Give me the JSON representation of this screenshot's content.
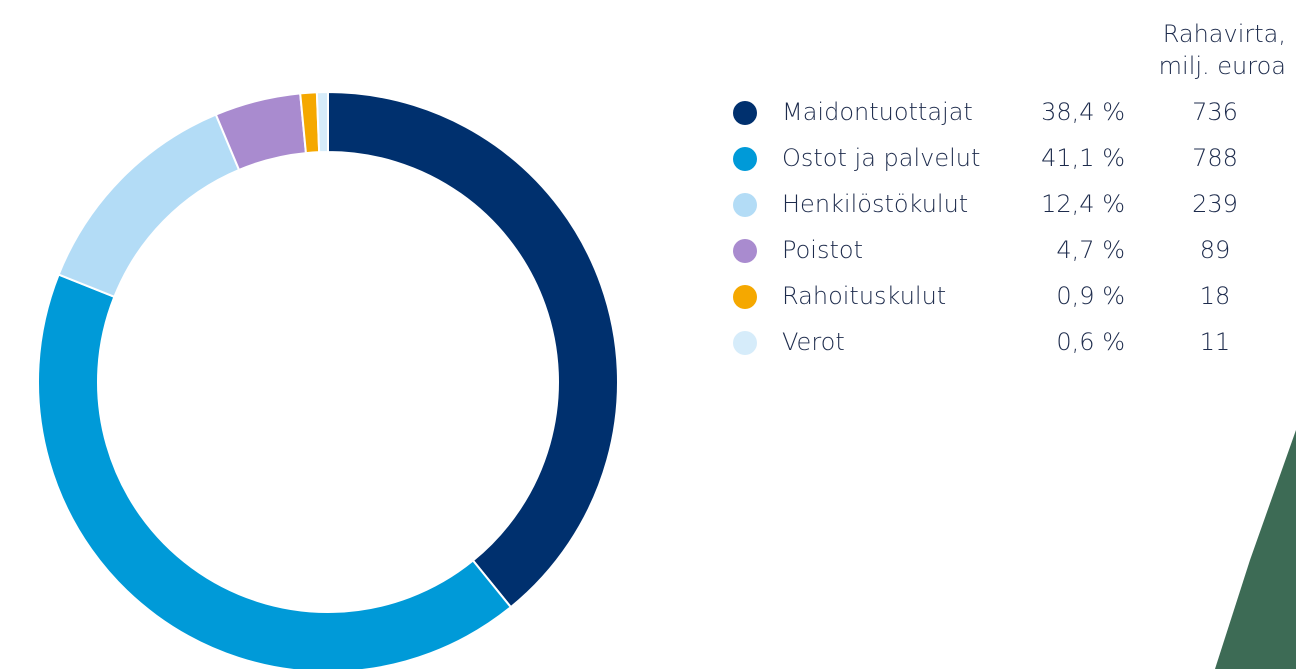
{
  "chart_data": {
    "type": "pie",
    "donut": true,
    "categories": [
      "Maidontuottajat",
      "Ostot ja palvelut",
      "Henkilöstökulut",
      "Poistot",
      "Rahoituskulut",
      "Verot"
    ],
    "values": [
      38.4,
      41.1,
      12.4,
      4.7,
      0.9,
      0.6
    ],
    "value_labels": [
      "38,4 %",
      "41,1 %",
      "12,4 %",
      "4,7 %",
      "0,9 %",
      "0,6 %"
    ],
    "colors": [
      "#00306e",
      "#009ad8",
      "#b3dcf6",
      "#a98bcf",
      "#f5a800",
      "#d6ecfa"
    ],
    "amount_header": "Rahavirta,\nmilj. euroa",
    "amounts": [
      736,
      788,
      239,
      89,
      18,
      11
    ]
  }
}
